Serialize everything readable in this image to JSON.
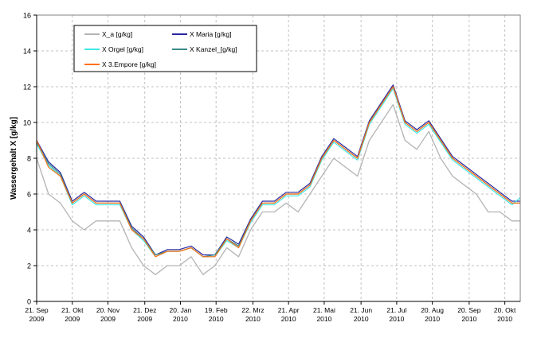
{
  "chart_data": {
    "type": "line",
    "title": "",
    "xlabel": "",
    "ylabel": "Wassergehalt X [g/kg]",
    "ylim": [
      0,
      16
    ],
    "yticks": [
      0,
      2,
      4,
      6,
      8,
      10,
      12,
      14,
      16
    ],
    "xlim": [
      "2009-09-21",
      "2010-11-02"
    ],
    "xticks": [
      {
        "date": "2009-09-21",
        "label1": "21. Sep",
        "label2": "2009"
      },
      {
        "date": "2009-10-21",
        "label1": "21. Okt",
        "label2": "2009"
      },
      {
        "date": "2009-11-20",
        "label1": "20. Nov",
        "label2": "2009"
      },
      {
        "date": "2009-12-21",
        "label1": "21. Dez",
        "label2": "2009"
      },
      {
        "date": "2010-01-20",
        "label1": "20. Jan",
        "label2": "2010"
      },
      {
        "date": "2010-02-19",
        "label1": "19. Feb",
        "label2": "2010"
      },
      {
        "date": "2010-03-22",
        "label1": "22. Mrz",
        "label2": "2010"
      },
      {
        "date": "2010-04-21",
        "label1": "21. Apr",
        "label2": "2010"
      },
      {
        "date": "2010-05-21",
        "label1": "21. Mai",
        "label2": "2010"
      },
      {
        "date": "2010-06-21",
        "label1": "21. Jun",
        "label2": "2010"
      },
      {
        "date": "2010-07-21",
        "label1": "21. Jul",
        "label2": "2010"
      },
      {
        "date": "2010-08-20",
        "label1": "20. Aug",
        "label2": "2010"
      },
      {
        "date": "2010-09-20",
        "label1": "20. Sep",
        "label2": "2010"
      },
      {
        "date": "2010-10-20",
        "label1": "20. Okt",
        "label2": "2010"
      }
    ],
    "grid": true,
    "legend_placement": "top-left",
    "x": [
      "2009-09-21",
      "2009-10-01",
      "2009-10-11",
      "2009-10-21",
      "2009-10-31",
      "2009-11-10",
      "2009-11-20",
      "2009-11-30",
      "2009-12-10",
      "2009-12-20",
      "2009-12-30",
      "2010-01-09",
      "2010-01-19",
      "2010-01-29",
      "2010-02-08",
      "2010-02-18",
      "2010-02-28",
      "2010-03-10",
      "2010-03-20",
      "2010-03-30",
      "2010-04-09",
      "2010-04-19",
      "2010-04-29",
      "2010-05-09",
      "2010-05-19",
      "2010-05-29",
      "2010-06-08",
      "2010-06-18",
      "2010-06-28",
      "2010-07-08",
      "2010-07-18",
      "2010-07-28",
      "2010-08-07",
      "2010-08-17",
      "2010-08-27",
      "2010-09-06",
      "2010-09-16",
      "2010-09-26",
      "2010-10-06",
      "2010-10-16",
      "2010-10-26",
      "2010-11-02"
    ],
    "series": [
      {
        "name": "X_a [g/kg]",
        "color": "#b4b4b4",
        "values": [
          8,
          6,
          5.5,
          4.5,
          4,
          4.5,
          4.5,
          4.5,
          3,
          2,
          1.5,
          2,
          2,
          2.5,
          1.5,
          2,
          3,
          2.5,
          4,
          5,
          5,
          5.5,
          5,
          6,
          7,
          8,
          7.5,
          7,
          9,
          10,
          11,
          9,
          8.5,
          9.5,
          8,
          7,
          6.5,
          6,
          5,
          5,
          4.5,
          4.5
        ]
      },
      {
        "name": "X Maria [g/kg]",
        "color": "#2828a0",
        "values": [
          9,
          7.8,
          7.2,
          5.6,
          6.1,
          5.6,
          5.6,
          5.6,
          4.2,
          3.6,
          2.6,
          2.9,
          2.9,
          3.1,
          2.6,
          2.6,
          3.6,
          3.2,
          4.6,
          5.6,
          5.6,
          6.1,
          6.1,
          6.6,
          8.1,
          9.1,
          8.6,
          8.1,
          10.1,
          11.1,
          12.1,
          10.1,
          9.6,
          10.1,
          9.1,
          8.1,
          7.6,
          7.1,
          6.6,
          6.1,
          5.6,
          5.6
        ]
      },
      {
        "name": "X Orgel [g/kg]",
        "color": "#40e8e8",
        "values": [
          8.8,
          7.6,
          7,
          5.4,
          5.9,
          5.4,
          5.4,
          5.4,
          4,
          3.4,
          2.5,
          2.8,
          2.8,
          3,
          2.5,
          2.5,
          3.4,
          3,
          4.4,
          5.4,
          5.4,
          5.9,
          5.9,
          6.4,
          7.9,
          8.9,
          8.4,
          7.9,
          9.9,
          10.9,
          11.9,
          9.9,
          9.4,
          9.9,
          8.9,
          7.9,
          7.4,
          6.9,
          6.4,
          5.9,
          5.4,
          5.8
        ]
      },
      {
        "name": "X Kanzel_[g/kg]",
        "color": "#3a8a8a",
        "values": [
          8.9,
          7.7,
          7.1,
          5.5,
          6,
          5.5,
          5.5,
          5.5,
          4.1,
          3.5,
          2.6,
          2.8,
          2.8,
          3,
          2.5,
          2.6,
          3.5,
          3.1,
          4.5,
          5.5,
          5.5,
          6,
          6,
          6.5,
          8,
          9,
          8.5,
          8,
          10,
          11,
          12,
          10,
          9.5,
          10,
          9,
          8,
          7.5,
          7,
          6.5,
          6,
          5.5,
          5.5
        ]
      },
      {
        "name": "X 3.Empore [g/kg]",
        "color": "#ff7010",
        "values": [
          9,
          7.5,
          7,
          5.5,
          6,
          5.5,
          5.5,
          5.5,
          4,
          3.5,
          2.5,
          2.8,
          2.8,
          3,
          2.5,
          2.5,
          3.5,
          3,
          4.5,
          5.5,
          5.5,
          6,
          6,
          6.5,
          8,
          9,
          8.5,
          8,
          10,
          11,
          12,
          10,
          9.5,
          10,
          9,
          8,
          7.5,
          7,
          6.5,
          6,
          5.5,
          5.5
        ]
      }
    ]
  }
}
